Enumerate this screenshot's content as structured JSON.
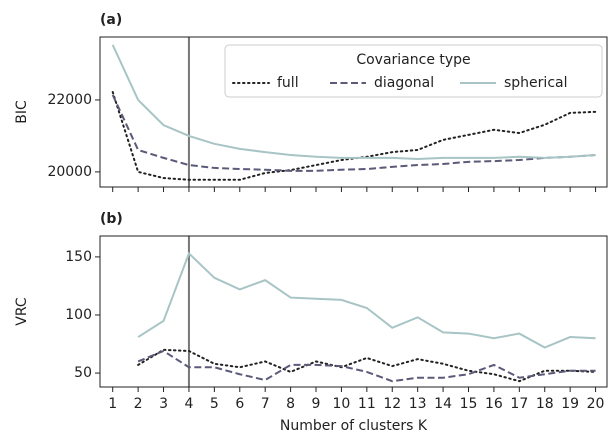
{
  "chart_data": [
    {
      "type": "line",
      "title": "(a)",
      "ylabel": "BIC",
      "x": [
        1,
        2,
        3,
        4,
        5,
        6,
        7,
        8,
        9,
        10,
        11,
        12,
        13,
        14,
        15,
        16,
        17,
        18,
        19,
        20
      ],
      "xlim": [
        0.5,
        20.45
      ],
      "ylim": [
        19580,
        23750
      ],
      "yticks": [
        20000,
        22000
      ],
      "vline": 4,
      "vline_color": "#777777",
      "legend": "upper right",
      "legend_title": "Covariance type",
      "series": [
        {
          "name": "full",
          "color": "#222222",
          "dash": "dotted",
          "values": [
            22220,
            20000,
            19830,
            19780,
            19780,
            19780,
            19970,
            20050,
            20190,
            20330,
            20420,
            20550,
            20610,
            20890,
            21030,
            21170,
            21080,
            21310,
            21640,
            21670
          ]
        },
        {
          "name": "diagonal",
          "color": "#5b5a78",
          "dash": "dashed",
          "values": [
            22140,
            20610,
            20390,
            20190,
            20110,
            20080,
            20060,
            20030,
            20030,
            20060,
            20080,
            20140,
            20190,
            20220,
            20280,
            20300,
            20330,
            20390,
            20420,
            20470
          ]
        },
        {
          "name": "spherical",
          "color": "#a8c4c4",
          "dash": "solid",
          "values": [
            23530,
            22000,
            21300,
            21000,
            20780,
            20640,
            20550,
            20470,
            20420,
            20390,
            20390,
            20390,
            20360,
            20390,
            20390,
            20390,
            20420,
            20390,
            20420,
            20470
          ]
        }
      ]
    },
    {
      "type": "line",
      "title": "(b)",
      "ylabel": "VRC",
      "xlabel": "Number of clusters K",
      "x": [
        1,
        2,
        3,
        4,
        5,
        6,
        7,
        8,
        9,
        10,
        11,
        12,
        13,
        14,
        15,
        16,
        17,
        18,
        19,
        20
      ],
      "xlim": [
        0.5,
        20.45
      ],
      "xticks": [
        1,
        2,
        3,
        4,
        5,
        6,
        7,
        8,
        9,
        10,
        11,
        12,
        13,
        14,
        15,
        16,
        17,
        18,
        19,
        20
      ],
      "ylim": [
        38,
        168
      ],
      "yticks": [
        50,
        100,
        150
      ],
      "vline": 4,
      "vline_color": "#777777",
      "series": [
        {
          "name": "full",
          "color": "#222222",
          "dash": "dotted",
          "values": [
            null,
            57,
            70,
            69,
            58,
            55,
            60,
            51,
            60,
            55,
            63,
            56,
            62,
            58,
            52,
            49,
            43,
            52,
            52,
            51
          ]
        },
        {
          "name": "diagonal",
          "color": "#5b5a78",
          "dash": "dashed",
          "values": [
            null,
            60,
            69,
            55,
            55,
            49,
            44,
            57,
            57,
            56,
            51,
            43,
            46,
            46,
            49,
            57,
            46,
            49,
            52,
            52
          ]
        },
        {
          "name": "spherical",
          "color": "#a8c4c4",
          "dash": "solid",
          "values": [
            null,
            81,
            95,
            153,
            132,
            122,
            130,
            115,
            114,
            113,
            106,
            89,
            98,
            85,
            84,
            80,
            84,
            72,
            81,
            80
          ]
        }
      ]
    }
  ]
}
